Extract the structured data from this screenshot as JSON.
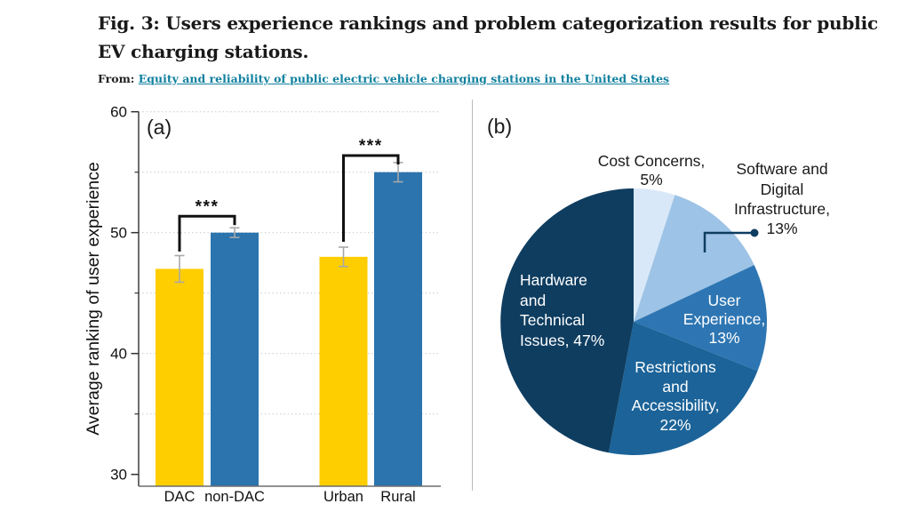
{
  "header": {
    "title": "Fig. 3: Users experience rankings and problem categorization results for public EV charging stations.",
    "from_label": "From:",
    "link_text": "Equity and reliability of public electric vehicle charging stations in the United States",
    "link_color": "#10809f"
  },
  "chart_data": [
    {
      "type": "bar",
      "panel_label": "(a)",
      "ylabel": "Average ranking of user experience",
      "ylim": [
        30,
        60
      ],
      "yticks_major": [
        30,
        40,
        50,
        60
      ],
      "yticks_minor": [
        35,
        45,
        55
      ],
      "grid": "dotted horizontal every 5 units",
      "categories": [
        "DAC",
        "non-DAC",
        "Urban",
        "Rural"
      ],
      "values": [
        47,
        50,
        48,
        55
      ],
      "errors": [
        1.1,
        0.4,
        0.8,
        0.8
      ],
      "bar_colors": [
        "#FFCE00",
        "#2B74AE",
        "#FFCE00",
        "#2B74AE"
      ],
      "significance": [
        {
          "pair": [
            "DAC",
            "non-DAC"
          ],
          "label": "***"
        },
        {
          "pair": [
            "Urban",
            "Rural"
          ],
          "label": "***"
        }
      ]
    },
    {
      "type": "pie",
      "panel_label": "(b)",
      "start_angle_deg": 0,
      "direction": "clockwise",
      "slices": [
        {
          "label": "Cost Concerns",
          "value": 5,
          "color": "#D9E8F8",
          "text_color": "#1a1a1a"
        },
        {
          "label": "Software and Digital Infrastructure",
          "value": 13,
          "color": "#9DC3E6",
          "text_color": "#1a1a1a"
        },
        {
          "label": "User Experience",
          "value": 13,
          "color": "#2E76B3",
          "text_color": "#ffffff"
        },
        {
          "label": "Restrictions and Accessibility",
          "value": 22,
          "color": "#1B6398",
          "text_color": "#ffffff"
        },
        {
          "label": "Hardware and Technical Issues",
          "value": 47,
          "color": "#0E3D60",
          "text_color": "#ffffff"
        }
      ]
    }
  ]
}
